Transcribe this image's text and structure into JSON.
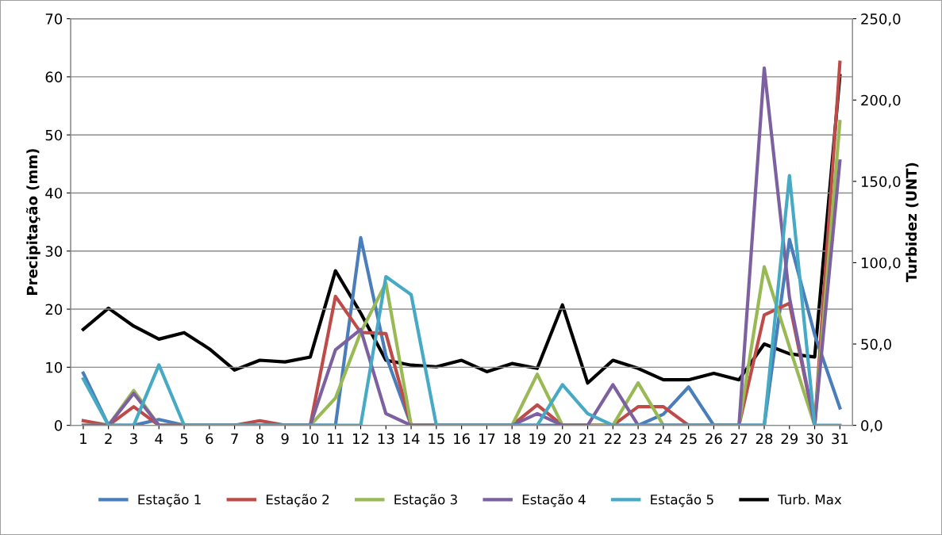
{
  "chart_data": {
    "type": "line",
    "ylabel": "Precipitação (mm)",
    "y2label": "Turbidez (UNT)",
    "categories": [
      "1",
      "2",
      "3",
      "4",
      "5",
      "6",
      "7",
      "8",
      "9",
      "10",
      "11",
      "12",
      "13",
      "14",
      "15",
      "16",
      "17",
      "18",
      "19",
      "20",
      "21",
      "22",
      "23",
      "24",
      "25",
      "26",
      "27",
      "28",
      "29",
      "30",
      "31"
    ],
    "series": [
      {
        "name": "Estação 1",
        "color": "#4a7ebb",
        "values": [
          9,
          0,
          0,
          1,
          0,
          0,
          0,
          0,
          0,
          0,
          0,
          32.3,
          12,
          0,
          0,
          0,
          0,
          0,
          0,
          0,
          0,
          0,
          0,
          1.9,
          6.6,
          0,
          0,
          0,
          32,
          15.6,
          3
        ]
      },
      {
        "name": "Estação 2",
        "color": "#be4b48",
        "values": [
          0.8,
          0,
          3.2,
          0,
          0,
          0,
          0,
          0.8,
          0,
          0,
          22.2,
          16,
          15.8,
          0,
          0,
          0,
          0,
          0,
          3.5,
          0,
          0,
          0,
          3.2,
          3.2,
          0,
          0,
          0,
          19,
          21,
          0,
          62.5
        ]
      },
      {
        "name": "Estação 3",
        "color": "#98b954",
        "values": [
          0,
          0,
          6,
          0,
          0,
          0,
          0,
          0,
          0,
          0,
          4.7,
          16,
          24.5,
          0,
          0,
          0,
          0,
          0,
          8.8,
          0,
          0,
          0,
          7.3,
          0,
          0,
          0,
          0,
          27.3,
          13.5,
          0,
          52.3
        ]
      },
      {
        "name": "Estação 4",
        "color": "#7d60a0",
        "values": [
          0,
          0,
          5.5,
          0,
          0,
          0,
          0,
          0,
          0,
          0,
          13,
          16.5,
          2,
          0,
          0,
          0,
          0,
          0,
          2,
          0,
          0,
          7,
          0,
          0,
          0,
          0,
          0,
          61.5,
          22,
          0,
          45.5
        ]
      },
      {
        "name": "Estação 5",
        "color": "#46aac5",
        "values": [
          8,
          0,
          0,
          10.4,
          0,
          0,
          0,
          0,
          0,
          0,
          0,
          0,
          25.6,
          22.5,
          0,
          0,
          0,
          0,
          0,
          7,
          2,
          0,
          0,
          0,
          0,
          0,
          0,
          0,
          43,
          0,
          0
        ]
      },
      {
        "name": "Turb. Max",
        "color": "#000000",
        "axis": "y2",
        "values": [
          59,
          72,
          61,
          53,
          57,
          47,
          34,
          40,
          39,
          42,
          95,
          69,
          40,
          37,
          36,
          40,
          33,
          38,
          35,
          74,
          26,
          40,
          35,
          28,
          28,
          32,
          28,
          50,
          44,
          42,
          215
        ]
      }
    ],
    "ylim": [
      0,
      70
    ],
    "yticks": [
      0,
      10,
      20,
      30,
      40,
      50,
      60,
      70
    ],
    "y2lim": [
      0,
      250
    ],
    "y2ticks": [
      {
        "value": 0,
        "label": "0,0"
      },
      {
        "value": 50,
        "label": "50,0"
      },
      {
        "value": 100,
        "label": "100,0"
      },
      {
        "value": 150,
        "label": "150,0"
      },
      {
        "value": 200,
        "label": "200,0"
      },
      {
        "value": 250,
        "label": "250,0"
      }
    ],
    "grid": "y",
    "legend": "bottom",
    "marker": "none",
    "line_style": "solid"
  }
}
